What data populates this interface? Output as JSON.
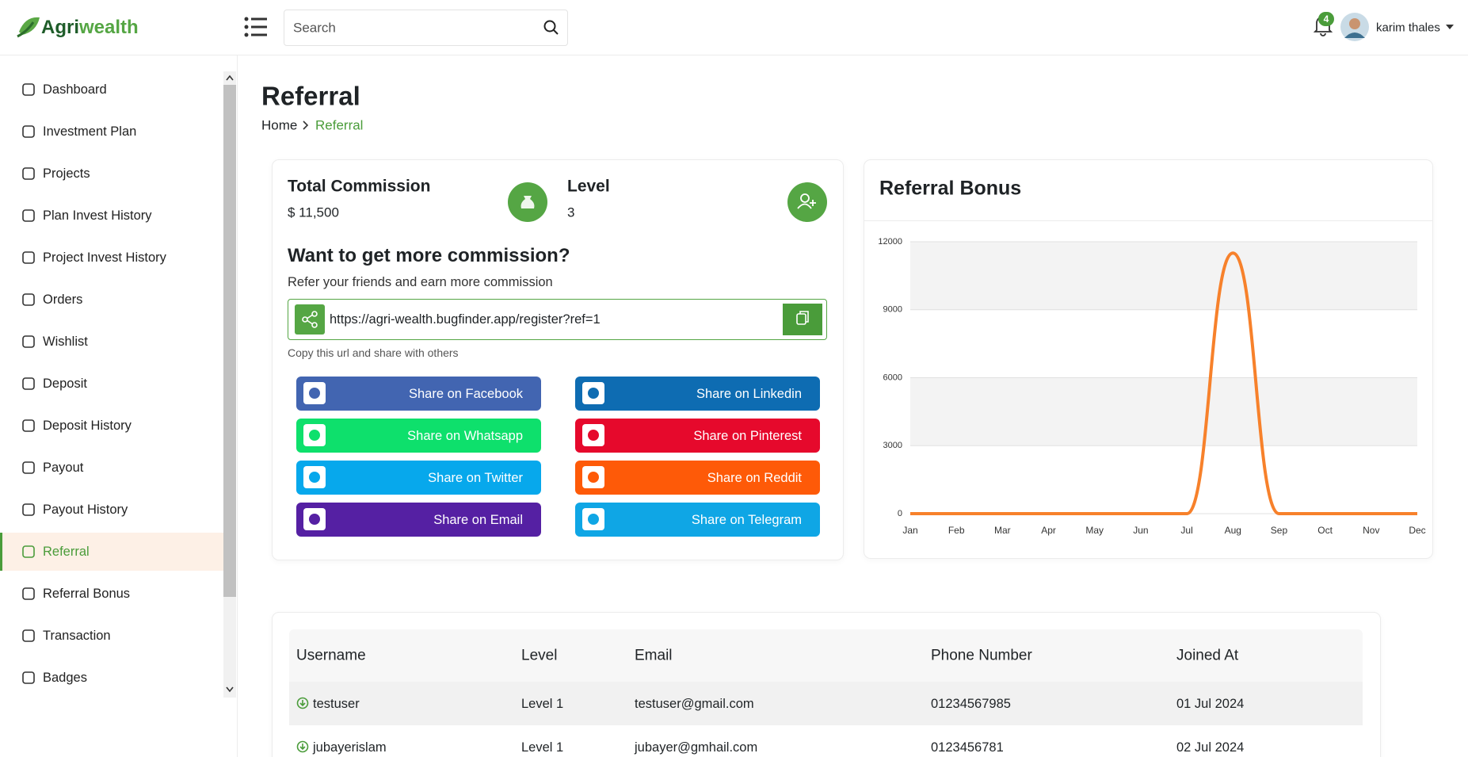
{
  "header": {
    "logo": {
      "part1": "Agri",
      "part2": "wealth"
    },
    "search_placeholder": "Search",
    "notification_count": 4,
    "user_name": "karim thales"
  },
  "sidebar": {
    "items": [
      "Dashboard",
      "Investment Plan",
      "Projects",
      "Plan Invest History",
      "Project Invest History",
      "Orders",
      "Wishlist",
      "Deposit",
      "Deposit History",
      "Payout",
      "Payout History",
      "Referral",
      "Referral Bonus",
      "Transaction",
      "Badges"
    ],
    "active_index": 11
  },
  "page": {
    "title": "Referral",
    "breadcrumb": [
      "Home",
      "Referral"
    ]
  },
  "commission_card": {
    "total_commission_label": "Total Commission",
    "total_commission": "$ 11,500",
    "level_label": "Level",
    "level": 3,
    "heading": "Want to get more commission?",
    "subheading": "Refer your friends and earn more commission",
    "referral_url": "https://agri-wealth.bugfinder.app/register?ref=1",
    "url_hint": "Copy this url and share with others"
  },
  "share_buttons": [
    {
      "label": "Share on Facebook",
      "color": "#4265b1"
    },
    {
      "label": "Share on Linkedin",
      "color": "#0e6cb2"
    },
    {
      "label": "Share on Whatsapp",
      "color": "#0ee06c"
    },
    {
      "label": "Share on Pinterest",
      "color": "#e6092c"
    },
    {
      "label": "Share on Twitter",
      "color": "#07a8ec"
    },
    {
      "label": "Share on Reddit",
      "color": "#fe5a08"
    },
    {
      "label": "Share on Email",
      "color": "#5520a3"
    },
    {
      "label": "Share on Telegram",
      "color": "#0fa6e5"
    }
  ],
  "chart": {
    "type": "line",
    "title": "Referral Bonus",
    "categories": [
      "Jan",
      "Feb",
      "Mar",
      "Apr",
      "May",
      "Jun",
      "Jul",
      "Aug",
      "Sep",
      "Oct",
      "Nov",
      "Dec"
    ],
    "values": [
      0,
      0,
      0,
      0,
      0,
      0,
      0,
      11500,
      0,
      0,
      0,
      0
    ],
    "color": "#f7812b",
    "ylim": [
      0,
      12000
    ],
    "yticks": [
      0,
      3000,
      6000,
      9000,
      12000
    ],
    "grid": true
  },
  "table": {
    "columns": [
      "Username",
      "Level",
      "Email",
      "Phone Number",
      "Joined At"
    ],
    "rows": [
      [
        "testuser",
        "Level 1",
        "testuser@gmail.com",
        "01234567985",
        "01 Jul 2024"
      ],
      [
        "jubayerislam",
        "Level 1",
        "jubayer@gmhail.com",
        "0123456781",
        "02 Jul 2024"
      ]
    ]
  }
}
